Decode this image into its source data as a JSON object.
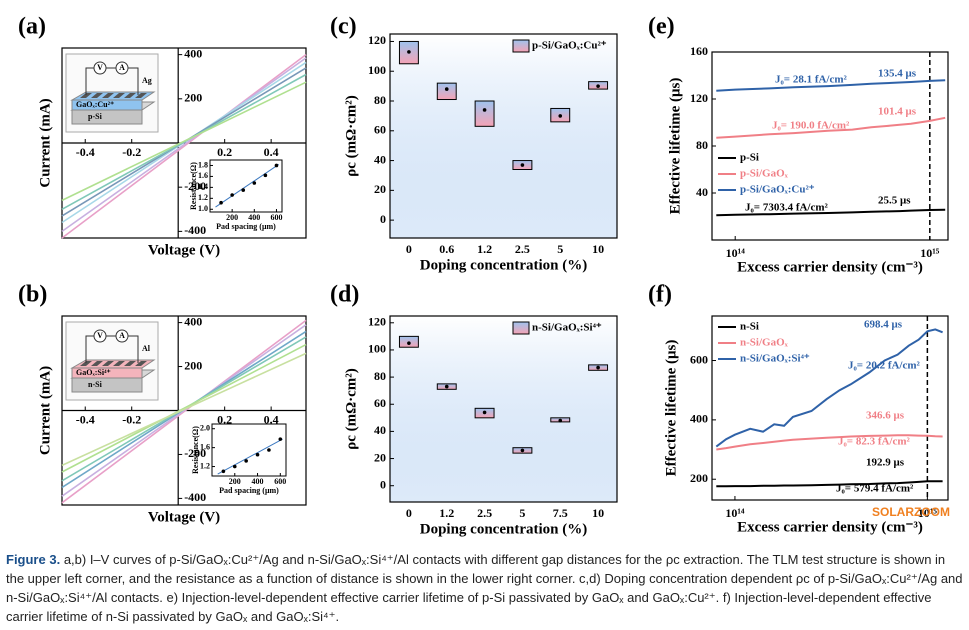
{
  "chart_data": [
    {
      "type": "line",
      "label": "(a)",
      "xlabel": "Voltage (V)",
      "ylabel": "Current (mA)",
      "axes": "center",
      "x": [
        -0.5,
        0.55
      ],
      "xlim": [
        -0.5,
        0.55
      ],
      "ylim": [
        -430,
        430
      ],
      "xticks": [
        -0.4,
        -0.2,
        0.2,
        0.4
      ],
      "yticks": [
        -400,
        -200,
        200,
        400
      ],
      "series": [
        {
          "color": "#e8a0c8",
          "values": [
            -430,
            400
          ]
        },
        {
          "color": "#c8b0e0",
          "values": [
            -400,
            385
          ]
        },
        {
          "color": "#a8d8e8",
          "values": [
            -360,
            365
          ]
        },
        {
          "color": "#7898b8",
          "values": [
            -330,
            340
          ]
        },
        {
          "color": "#80c8b8",
          "values": [
            -300,
            310
          ]
        },
        {
          "color": "#b0e090",
          "values": [
            -260,
            275
          ]
        }
      ],
      "schematic": {
        "voltmeter": "V",
        "ammeter": "A",
        "electrode": "Ag",
        "layer": "GaOₓ:Cu²⁺",
        "substrate": "p-Si",
        "layer_color": "#8fc3ef"
      },
      "inset": {
        "type": "scatter",
        "xlabel": "Pad spacing  (μm)",
        "ylabel": "Resistance(Ω)",
        "x": [
          100,
          200,
          300,
          400,
          500,
          600
        ],
        "values": [
          1.12,
          1.26,
          1.35,
          1.48,
          1.62,
          1.8
        ],
        "xlim": [
          0,
          650
        ],
        "ylim": [
          0.95,
          1.9
        ],
        "xticks": [
          200,
          400,
          600
        ],
        "yticks": [
          {
            "value": 1,
            "label": "1.0"
          },
          1.2,
          1.4,
          1.6,
          1.8
        ],
        "fit": {
          "x": [
            50,
            620
          ],
          "values": [
            1.04,
            1.82
          ]
        }
      }
    },
    {
      "type": "line",
      "label": "(b)",
      "xlabel": "Voltage (V)",
      "ylabel": "Current (mA)",
      "axes": "center",
      "x": [
        -0.5,
        0.55
      ],
      "xlim": [
        -0.5,
        0.55
      ],
      "ylim": [
        -430,
        430
      ],
      "xticks": [
        -0.4,
        -0.2,
        0.2,
        0.4
      ],
      "yticks": [
        -400,
        -200,
        200,
        400
      ],
      "series": [
        {
          "color": "#e8a0c8",
          "values": [
            -420,
            410
          ]
        },
        {
          "color": "#c8b0e0",
          "values": [
            -390,
            390
          ]
        },
        {
          "color": "#6fa8c8",
          "values": [
            -350,
            360
          ]
        },
        {
          "color": "#80c8b8",
          "values": [
            -320,
            335
          ]
        },
        {
          "color": "#b0e090",
          "values": [
            -280,
            300
          ]
        },
        {
          "color": "#c8e0a0",
          "values": [
            -250,
            260
          ]
        }
      ],
      "schematic": {
        "voltmeter": "V",
        "ammeter": "A",
        "electrode": "Al",
        "layer": "GaOₓ:Si⁴⁺",
        "substrate": "n-Si",
        "layer_color": "#f4b4bc"
      },
      "inset": {
        "type": "scatter",
        "xlabel": "Pad spacing  (μm)",
        "ylabel": "Resistance(Ω)",
        "x": [
          100,
          200,
          300,
          400,
          500,
          600
        ],
        "values": [
          1.1,
          1.2,
          1.32,
          1.45,
          1.55,
          1.78
        ],
        "xlim": [
          0,
          650
        ],
        "ylim": [
          1.0,
          2.1
        ],
        "xticks": [
          200,
          400,
          600
        ],
        "yticks": [
          1.2,
          1.6,
          {
            "value": 2,
            "label": "2.0"
          }
        ],
        "fit": {
          "x": [
            50,
            620
          ],
          "values": [
            1.04,
            1.78
          ]
        }
      }
    },
    {
      "type": "box",
      "label": "(c)",
      "xlabel": "Doping concentration (%)",
      "ylabel": "ρc (mΩ·cm²)",
      "categories": [
        "0",
        "0.6",
        "1.2",
        "2.5",
        "5",
        "10"
      ],
      "ylim": [
        -12,
        125
      ],
      "yticks": [
        0,
        20,
        40,
        60,
        80,
        100,
        120
      ],
      "colors": [
        "#9fc3ee",
        "#f5a3b5"
      ],
      "series": [
        {
          "name": "p-Si/GaOₓ:Cu²⁺",
          "lower": [
            105,
            81,
            63,
            34,
            66,
            88
          ],
          "upper": [
            120,
            92,
            80,
            40,
            75,
            93
          ],
          "mean": [
            113,
            88,
            74,
            37,
            70,
            90
          ]
        }
      ]
    },
    {
      "type": "box",
      "label": "(d)",
      "xlabel": "Doping concentration (%)",
      "ylabel": "ρc (mΩ·cm²)",
      "categories": [
        "0",
        "1.2",
        "2.5",
        "5",
        "7.5",
        "10"
      ],
      "ylim": [
        -12,
        125
      ],
      "yticks": [
        0,
        20,
        40,
        60,
        80,
        100,
        120
      ],
      "colors": [
        "#9fc3ee",
        "#f5a3b5"
      ],
      "series": [
        {
          "name": "n-Si/GaOₓ:Si⁴⁺",
          "lower": [
            102,
            71,
            50,
            24,
            47,
            85
          ],
          "upper": [
            110,
            75,
            57,
            28,
            50,
            89
          ],
          "mean": [
            105,
            73,
            54,
            26,
            48,
            87
          ]
        }
      ]
    },
    {
      "type": "line",
      "label": "(e)",
      "xlabel": "Excess carrier density (cm⁻³)",
      "ylabel": "Effective lifetime (μs)",
      "xscale": "log",
      "xlim": [
        76000000000000,
        1240000000000000
      ],
      "ylim": [
        0,
        160
      ],
      "xticks": [
        {
          "value": 100000000000000,
          "label": "10¹⁴"
        },
        {
          "value": 1000000000000000,
          "label": "10¹⁵"
        }
      ],
      "yticks": [
        40,
        80,
        120,
        160
      ],
      "marker_x": 1000000000000000,
      "x": [
        80000000000000,
        100000000000000,
        150000000000000,
        200000000000000,
        300000000000000,
        400000000000000,
        500000000000000,
        600000000000000,
        700000000000000,
        800000000000000,
        1000000000000000,
        1200000000000000
      ],
      "series": [
        {
          "name": "p-Si",
          "color": "#000000",
          "values": [
            21,
            21.5,
            22,
            22.5,
            23,
            23.5,
            24,
            24.3,
            24.6,
            25,
            25.5,
            25.8
          ]
        },
        {
          "name": "p-Si/GaOₓ",
          "color": "#f07f86",
          "values": [
            87,
            88,
            90,
            91,
            93,
            94,
            96,
            97,
            98,
            99,
            101.4,
            104
          ]
        },
        {
          "name": "p-Si/GaOₓ:Cu²⁺",
          "color": "#2f62a8",
          "values": [
            127,
            128,
            129,
            130,
            131,
            132,
            133,
            133.5,
            134,
            134.5,
            135.4,
            136
          ]
        }
      ],
      "annotations": [
        {
          "text": "J₀= 28.1 fA/cm²",
          "color": "#2f62a8"
        },
        {
          "text": "135.4 μs",
          "color": "#2f62a8"
        },
        {
          "text": "J₀= 190.0 fA/cm²",
          "color": "#f07f86"
        },
        {
          "text": "101.4 μs",
          "color": "#f07f86"
        },
        {
          "text": "J₀= 7303.4 fA/cm²",
          "color": "#000000"
        },
        {
          "text": "25.5 μs",
          "color": "#000000"
        }
      ]
    },
    {
      "type": "line",
      "label": "(f)",
      "xlabel": "Excess carrier density (cm⁻³)",
      "ylabel": "Effective lifetime (μs)",
      "xscale": "log",
      "xlim": [
        76000000000000,
        1280000000000000
      ],
      "ylim": [
        130,
        750
      ],
      "xticks": [
        {
          "value": 100000000000000,
          "label": "10¹⁴"
        },
        {
          "value": 1000000000000000,
          "label": "10¹⁵"
        }
      ],
      "yticks": [
        200,
        400,
        600
      ],
      "marker_x": 1000000000000000,
      "x": [
        80000000000000,
        90000000000000,
        100000000000000,
        120000000000000,
        140000000000000,
        160000000000000,
        180000000000000,
        200000000000000,
        250000000000000,
        300000000000000,
        350000000000000,
        400000000000000,
        500000000000000,
        600000000000000,
        700000000000000,
        800000000000000,
        900000000000000,
        1000000000000000,
        1100000000000000,
        1200000000000000
      ],
      "series": [
        {
          "name": "n-Si",
          "color": "#000000",
          "values": [
            176,
            176,
            177,
            177,
            178,
            178,
            179,
            179,
            180,
            181,
            182,
            183,
            184,
            186,
            187,
            189,
            191,
            192.9,
            193,
            193
          ]
        },
        {
          "name": "n-Si/GaOₓ",
          "color": "#f07f86",
          "values": [
            300,
            305,
            310,
            318,
            322,
            326,
            330,
            333,
            337,
            340,
            342,
            344,
            346,
            347,
            348,
            348,
            347,
            346.6,
            345,
            344
          ]
        },
        {
          "name": "n-Si/GaOₓ:Si⁴⁺",
          "color": "#2f62a8",
          "values": [
            310,
            335,
            350,
            370,
            360,
            385,
            380,
            410,
            430,
            470,
            500,
            520,
            560,
            600,
            620,
            650,
            670,
            698.4,
            705,
            695
          ]
        }
      ],
      "annotations": [
        {
          "text": "698.4 μs",
          "color": "#2f62a8"
        },
        {
          "text": "J₀= 20.2 fA/cm²",
          "color": "#2f62a8"
        },
        {
          "text": "346.6 μs",
          "color": "#f07f86"
        },
        {
          "text": "J₀= 82.3 fA/cm²",
          "color": "#f07f86"
        },
        {
          "text": "192.9 μs",
          "color": "#000000"
        },
        {
          "text": "J₀= 579.4 fA/cm²",
          "color": "#000000"
        }
      ]
    }
  ],
  "watermark": "SOLARZOOM",
  "caption": {
    "label": "Figure 3.",
    "text": "a,b) I–V curves of p-Si/GaOₓ:Cu²⁺/Ag and n-Si/GaOₓ:Si⁴⁺/Al contacts with different gap distances for the ρc extraction. The TLM test structure is shown in the upper left corner, and the resistance as a function of distance is shown in the lower right corner. c,d) Doping concentration dependent ρc of p-Si/GaOₓ:Cu²⁺/Ag and n-Si/GaOₓ:Si⁴⁺/Al contacts. e) Injection-level-dependent effective carrier lifetime of p-Si passivated by GaOₓ and GaOₓ:Cu²⁺. f) Injection-level-dependent effective carrier lifetime of n-Si passivated by GaOₓ and GaOₓ:Si⁴⁺."
  }
}
